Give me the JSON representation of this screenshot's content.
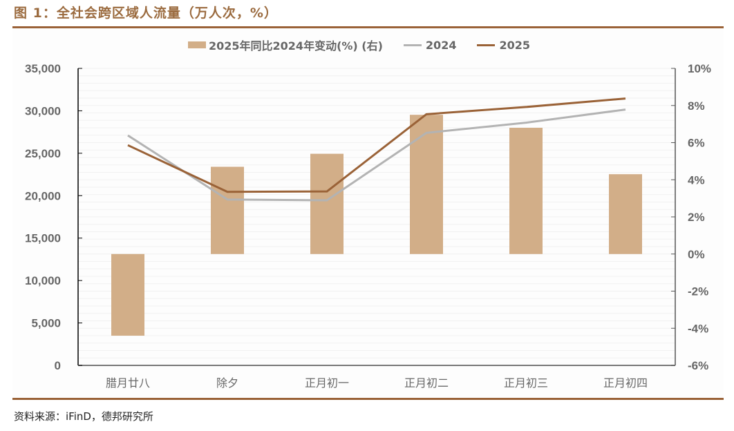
{
  "title": "图 1：全社会跨区域人流量（万人次，%）",
  "source": "资料来源：iFinD，德邦研究所",
  "colors": {
    "title": "#9b6b3f",
    "rule": "#9a6237",
    "bar": "#d2ae88",
    "line_2024": "#b3b3b3",
    "line_2025": "#9a6237",
    "axis_text": "#666666",
    "grid": "#f1f1f1"
  },
  "legend": [
    {
      "label": "2025年同比2024年变动(%) (右)",
      "type": "bar"
    },
    {
      "label": "2024",
      "type": "line"
    },
    {
      "label": "2025",
      "type": "line"
    }
  ],
  "chart_data": {
    "type": "bar+line",
    "title": "全社会跨区域人流量（万人次，%）",
    "categories": [
      "腊月廿八",
      "除夕",
      "正月初一",
      "正月初二",
      "正月初三",
      "正月初四"
    ],
    "series": [
      {
        "name": "2025年同比2024年变动(%) (右)",
        "type": "bar",
        "axis": "right",
        "values": [
          -4.4,
          4.7,
          5.4,
          7.5,
          6.8,
          4.3
        ]
      },
      {
        "name": "2024",
        "type": "line",
        "axis": "left",
        "values": [
          27100,
          19550,
          19450,
          27400,
          28600,
          30150
        ]
      },
      {
        "name": "2025",
        "type": "line",
        "axis": "left",
        "values": [
          25950,
          20450,
          20500,
          29600,
          30450,
          31450
        ]
      }
    ],
    "left_axis": {
      "ylim": [
        0,
        35000
      ],
      "ticks": [
        "35,000",
        "30,000",
        "25,000",
        "20,000",
        "15,000",
        "10,000",
        "5,000",
        "0"
      ]
    },
    "right_axis": {
      "ylim": [
        -6,
        10
      ],
      "ticks": [
        "10%",
        "8%",
        "6%",
        "4%",
        "2%",
        "0%",
        "-2%",
        "-4%",
        "-6%"
      ]
    },
    "xlabel": "",
    "ylabel": "",
    "grid": true,
    "legend_position": "top"
  }
}
